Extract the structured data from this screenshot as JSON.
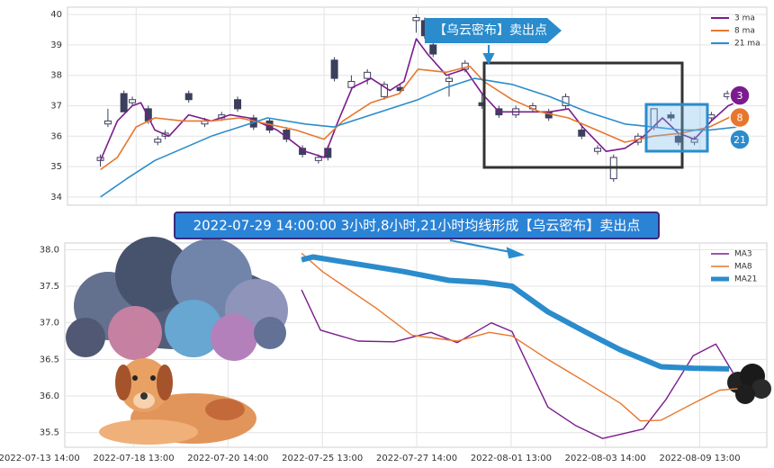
{
  "chart_data": [
    {
      "type": "candlestick",
      "annotation": "【乌云密布】卖出点",
      "xlim": [
        0.27,
        7.71
      ],
      "ylim": [
        33.73,
        40.24
      ],
      "xticks": [
        0,
        1,
        2,
        3,
        4,
        5,
        6,
        7
      ],
      "yticks": [
        34,
        35,
        36,
        37,
        38,
        39,
        40
      ],
      "grid": true,
      "legend": "upper right",
      "up_color": "#ffffff",
      "down_color": "#3b3f5c",
      "x": [
        0.62,
        0.7,
        0.87,
        0.96,
        1.13,
        1.23,
        1.31,
        1.56,
        1.73,
        1.91,
        2.08,
        2.25,
        2.42,
        2.6,
        2.77,
        2.94,
        3.04,
        3.11,
        3.29,
        3.46,
        3.64,
        3.81,
        3.98,
        4.07,
        4.16,
        4.33,
        4.5,
        4.68,
        4.86,
        5.04,
        5.22,
        5.39,
        5.57,
        5.74,
        5.91,
        6.08,
        6.34,
        6.51,
        6.69,
        6.77,
        6.94,
        7.12,
        7.29
      ],
      "open": [
        35.2,
        36.4,
        37.4,
        37.1,
        36.9,
        35.8,
        36.0,
        37.4,
        36.4,
        36.6,
        37.2,
        36.6,
        36.5,
        36.2,
        35.6,
        35.2,
        35.6,
        38.5,
        37.6,
        37.9,
        37.3,
        37.6,
        39.8,
        39.8,
        39.0,
        37.8,
        38.2,
        37.1,
        36.9,
        36.7,
        36.9,
        36.8,
        37.0,
        36.2,
        35.5,
        34.6,
        35.8,
        36.3,
        36.7,
        36.0,
        35.8,
        36.6,
        37.3
      ],
      "high": [
        35.4,
        36.9,
        37.5,
        37.3,
        37.0,
        36.0,
        36.2,
        37.5,
        36.6,
        36.8,
        37.3,
        36.7,
        36.6,
        36.3,
        35.7,
        35.4,
        35.7,
        38.6,
        38.0,
        38.2,
        37.8,
        37.7,
        40.0,
        39.9,
        39.1,
        38.0,
        38.5,
        37.4,
        37.0,
        37.0,
        37.1,
        36.9,
        37.4,
        36.3,
        35.7,
        35.4,
        36.1,
        36.9,
        36.8,
        36.1,
        36.0,
        36.8,
        37.5
      ],
      "low": [
        35.0,
        36.3,
        36.8,
        37.0,
        36.4,
        35.7,
        35.9,
        37.1,
        36.3,
        36.5,
        36.8,
        36.2,
        36.1,
        35.8,
        35.3,
        35.1,
        35.2,
        37.8,
        37.5,
        37.7,
        37.2,
        37.4,
        39.4,
        39.2,
        38.6,
        37.3,
        38.1,
        36.9,
        36.6,
        36.6,
        36.8,
        36.5,
        36.9,
        35.9,
        35.4,
        34.5,
        35.7,
        36.2,
        36.5,
        35.7,
        35.7,
        36.5,
        37.2
      ],
      "close": [
        35.3,
        36.5,
        36.8,
        37.2,
        36.5,
        35.9,
        36.1,
        37.2,
        36.5,
        36.7,
        36.9,
        36.3,
        36.2,
        35.9,
        35.4,
        35.3,
        35.3,
        37.9,
        37.8,
        38.1,
        37.7,
        37.5,
        39.9,
        39.3,
        38.7,
        37.9,
        38.4,
        37.0,
        36.7,
        36.9,
        37.0,
        36.6,
        37.3,
        36.0,
        35.6,
        35.3,
        36.0,
        36.9,
        36.6,
        35.8,
        35.9,
        36.7,
        37.4
      ],
      "series": [
        {
          "name": "3 ma",
          "color": "#7b1b8e",
          "badge": "3",
          "x": [
            0.62,
            0.8,
            0.96,
            1.05,
            1.2,
            1.35,
            1.56,
            1.8,
            2.0,
            2.2,
            2.5,
            2.8,
            3.0,
            3.15,
            3.3,
            3.5,
            3.7,
            3.85,
            3.98,
            4.1,
            4.3,
            4.5,
            4.68,
            4.86,
            5.1,
            5.4,
            5.6,
            5.75,
            6.0,
            6.2,
            6.4,
            6.6,
            6.77,
            6.94,
            7.12,
            7.3,
            7.45
          ],
          "values": [
            35.2,
            36.5,
            37.0,
            37.1,
            36.2,
            36.0,
            36.7,
            36.5,
            36.7,
            36.6,
            36.2,
            35.5,
            35.3,
            36.5,
            37.6,
            37.9,
            37.5,
            37.8,
            39.2,
            38.7,
            38.0,
            38.2,
            37.4,
            36.8,
            36.8,
            36.8,
            36.9,
            36.3,
            35.5,
            35.6,
            36.0,
            36.6,
            36.1,
            35.9,
            36.5,
            37.0,
            37.2
          ]
        },
        {
          "name": "8 ma",
          "color": "#e8772e",
          "badge": "8",
          "x": [
            0.62,
            0.8,
            1.0,
            1.2,
            1.5,
            1.8,
            2.1,
            2.4,
            2.7,
            3.0,
            3.2,
            3.5,
            3.8,
            4.0,
            4.3,
            4.55,
            4.7,
            5.0,
            5.3,
            5.6,
            5.9,
            6.2,
            6.5,
            6.8,
            7.1,
            7.3,
            7.45
          ],
          "values": [
            34.9,
            35.3,
            36.3,
            36.6,
            36.5,
            36.5,
            36.6,
            36.4,
            36.2,
            35.9,
            36.5,
            37.1,
            37.4,
            38.2,
            38.1,
            38.3,
            37.8,
            37.2,
            36.8,
            36.6,
            36.2,
            35.8,
            36.0,
            36.1,
            36.3,
            36.6,
            36.9
          ]
        },
        {
          "name": "21 ma",
          "color": "#2a8ccc",
          "badge": "21",
          "x": [
            0.62,
            0.9,
            1.2,
            1.5,
            1.8,
            2.1,
            2.4,
            2.8,
            3.1,
            3.4,
            3.7,
            4.0,
            4.3,
            4.6,
            5.0,
            5.4,
            5.8,
            6.2,
            6.5,
            6.8,
            7.1,
            7.4
          ],
          "values": [
            34.0,
            34.6,
            35.2,
            35.6,
            36.0,
            36.3,
            36.6,
            36.4,
            36.3,
            36.6,
            36.9,
            37.2,
            37.6,
            37.9,
            37.7,
            37.3,
            36.8,
            36.4,
            36.3,
            36.2,
            36.2,
            36.3
          ]
        }
      ]
    },
    {
      "type": "line",
      "annotation": "2022-07-29 14:00:00 3小时,8小时,21小时均线形成【乌云密布】卖出点",
      "xlim": [
        0.27,
        7.71
      ],
      "ylim": [
        35.3,
        38.09
      ],
      "xticks": [
        {
          "value": 0,
          "label": "2022-07-13 14:00"
        },
        {
          "value": 1,
          "label": "2022-07-18 13:00"
        },
        {
          "value": 2,
          "label": "2022-07-20 14:00"
        },
        {
          "value": 3,
          "label": "2022-07-25 13:00"
        },
        {
          "value": 4,
          "label": "2022-07-27 14:00"
        },
        {
          "value": 5,
          "label": "2022-08-01 13:00"
        },
        {
          "value": 6,
          "label": "2022-08-03 14:00"
        },
        {
          "value": 7,
          "label": "2022-08-09 13:00"
        }
      ],
      "yticks": [
        35.5,
        {
          "value": 36,
          "label": "36.0"
        },
        36.5,
        {
          "value": 37,
          "label": "37.0"
        },
        37.5,
        {
          "value": 38,
          "label": "38.0"
        }
      ],
      "grid": true,
      "legend": "upper right",
      "series": [
        {
          "name": "MA3",
          "color": "#7b1b8e",
          "width": 1.4,
          "x": [
            2.78,
            2.98,
            3.38,
            3.76,
            4.15,
            4.43,
            4.79,
            5.01,
            5.39,
            5.68,
            5.97,
            6.4,
            6.64,
            6.93,
            7.17,
            7.36
          ],
          "values": [
            37.45,
            36.9,
            36.75,
            36.74,
            36.87,
            36.73,
            37.0,
            36.88,
            35.85,
            35.6,
            35.42,
            35.55,
            35.95,
            36.55,
            36.71,
            36.3
          ]
        },
        {
          "name": "MA8",
          "color": "#e8772e",
          "width": 1.4,
          "x": [
            2.78,
            3.0,
            3.57,
            3.95,
            4.43,
            4.77,
            5.01,
            5.39,
            5.78,
            6.16,
            6.37,
            6.59,
            6.93,
            7.21,
            7.4
          ],
          "values": [
            37.95,
            37.7,
            37.2,
            36.83,
            36.75,
            36.87,
            36.82,
            36.5,
            36.2,
            35.9,
            35.66,
            35.67,
            35.9,
            36.08,
            36.1
          ]
        },
        {
          "name": "MA21",
          "color": "#2a8ccc",
          "width": 6,
          "x": [
            2.78,
            2.9,
            3.38,
            3.86,
            4.34,
            4.72,
            5.01,
            5.39,
            5.78,
            6.16,
            6.59,
            6.93,
            7.31
          ],
          "values": [
            37.86,
            37.9,
            37.8,
            37.7,
            37.58,
            37.55,
            37.5,
            37.15,
            36.88,
            36.63,
            36.4,
            36.38,
            36.37
          ]
        }
      ]
    }
  ]
}
